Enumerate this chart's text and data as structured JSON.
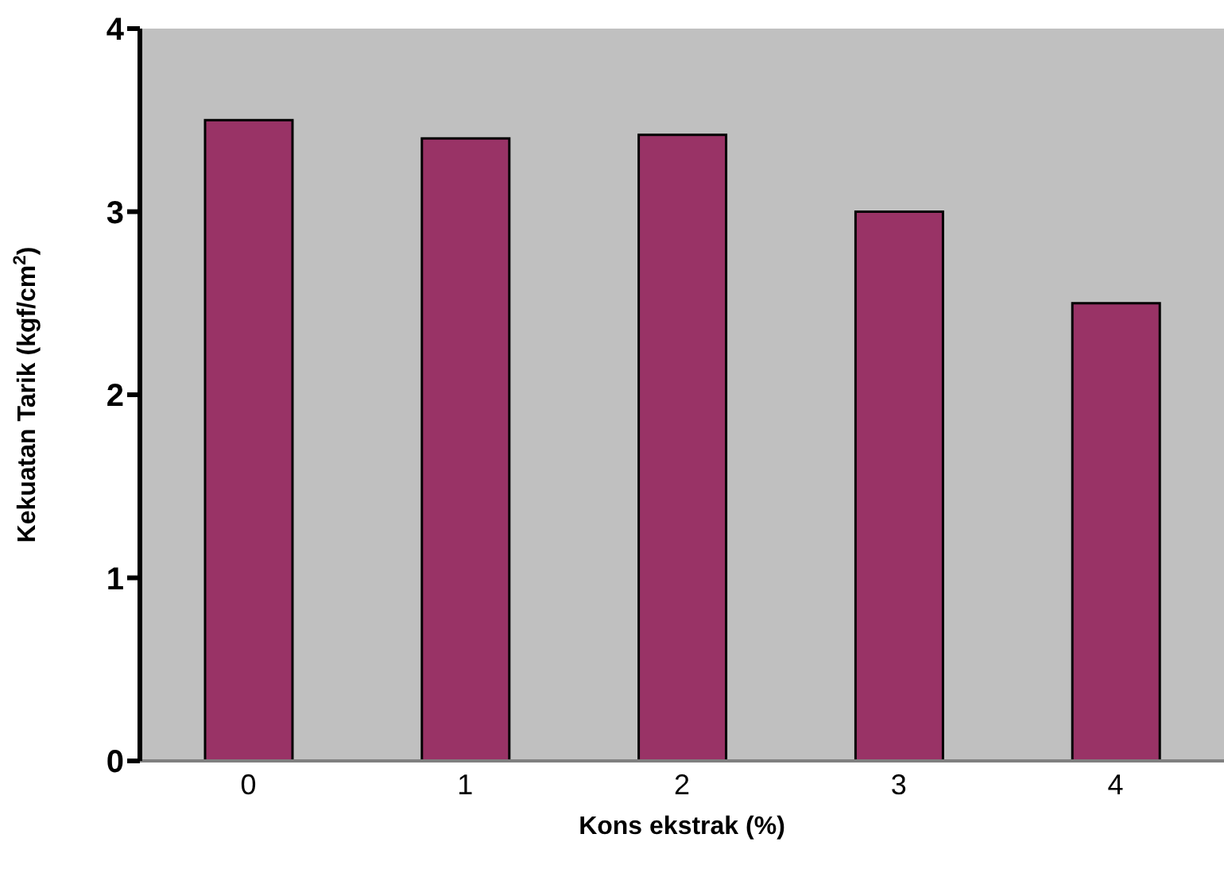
{
  "chart_data": {
    "type": "bar",
    "xlabel": "Kons ekstrak (%)",
    "ylabel": "Kekuatan Tarik (kgf/cm$^{2}$)",
    "categories": [
      "0",
      "1",
      "2",
      "3",
      "4"
    ],
    "values": [
      3.5,
      3.4,
      3.42,
      3.0,
      2.5
    ],
    "color": "#993366",
    "ylim": [
      0,
      4
    ],
    "yticks": [
      0,
      1,
      2,
      3,
      4
    ],
    "grid": false
  }
}
